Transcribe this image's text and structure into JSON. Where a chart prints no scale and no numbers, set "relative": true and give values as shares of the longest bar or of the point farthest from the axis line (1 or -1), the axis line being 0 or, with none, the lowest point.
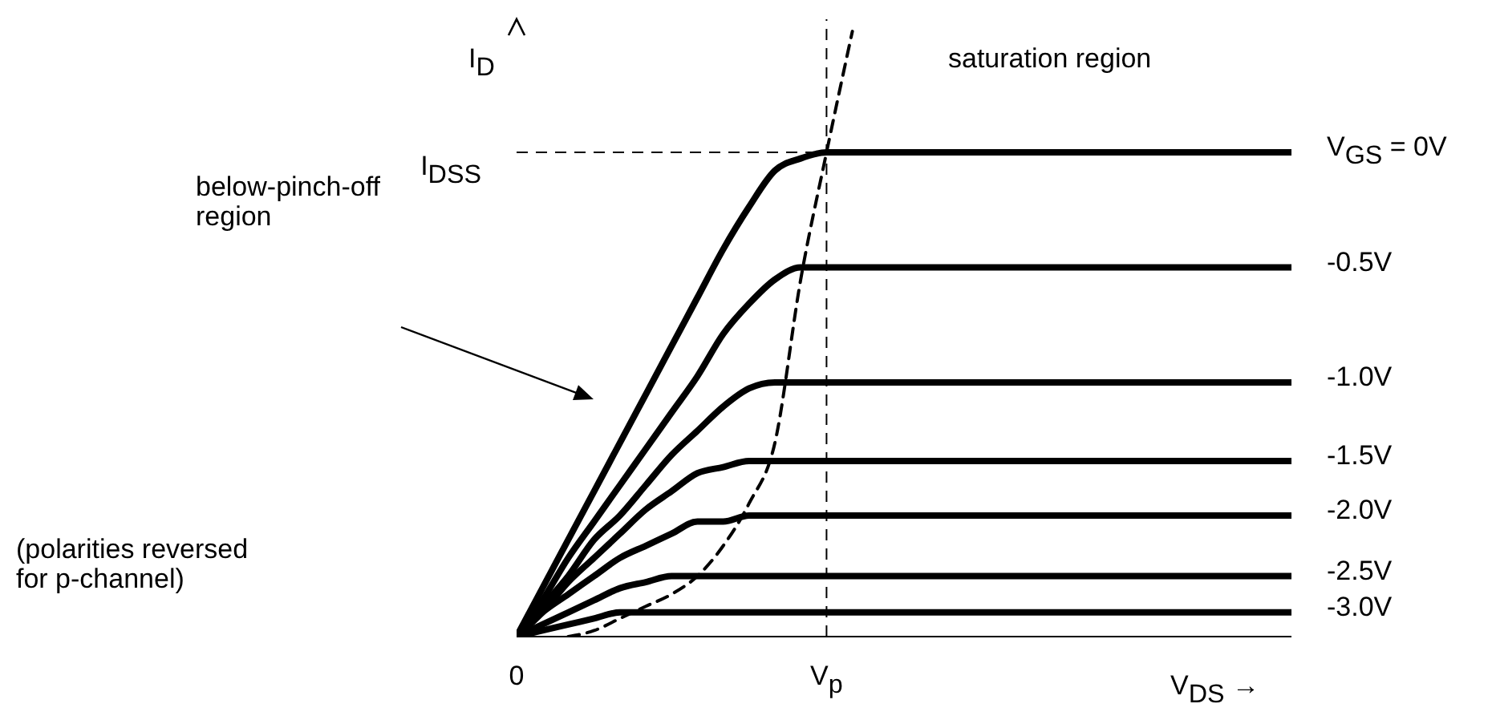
{
  "chart_data": {
    "type": "line",
    "relative": true,
    "xlabel": "V$_{DS}$ →",
    "ylabel": "I$_{D}$",
    "categories": [
      "0",
      null,
      null,
      null,
      null,
      null,
      null,
      null,
      null,
      null,
      null,
      null,
      "V$_{p}$",
      null,
      null,
      null,
      null,
      null,
      null,
      null,
      null,
      null,
      null,
      null,
      null,
      null,
      null,
      null,
      null,
      null,
      null
    ],
    "series": [
      {
        "name": "V$_{GS}$ = 0V",
        "color": "#000000",
        "line_style": "solid",
        "values": [
          0,
          0.08,
          0.16,
          0.24,
          0.32,
          0.4,
          0.48,
          0.56,
          0.64,
          0.71,
          0.77,
          0.79,
          0.8,
          0.8,
          0.8,
          0.8,
          0.8,
          0.8,
          0.8,
          0.8,
          0.8,
          0.8,
          0.8,
          0.8,
          0.8,
          0.8,
          0.8,
          0.8,
          0.8,
          0.8,
          0.8
        ]
      },
      {
        "name": "-0.5V",
        "color": "#000000",
        "line_style": "solid",
        "values": [
          0,
          0.06,
          0.13,
          0.19,
          0.25,
          0.31,
          0.37,
          0.43,
          0.5,
          0.55,
          0.59,
          0.61,
          0.61,
          0.61,
          0.61,
          0.61,
          0.61,
          0.61,
          0.61,
          0.61,
          0.61,
          0.61,
          0.61,
          0.61,
          0.61,
          0.61,
          0.61,
          0.61,
          0.61,
          0.61,
          0.61
        ]
      },
      {
        "name": "-1.0V",
        "color": "#000000",
        "line_style": "solid",
        "values": [
          0,
          0.05,
          0.1,
          0.16,
          0.2,
          0.25,
          0.3,
          0.34,
          0.38,
          0.41,
          0.42,
          0.42,
          0.42,
          0.42,
          0.42,
          0.42,
          0.42,
          0.42,
          0.42,
          0.42,
          0.42,
          0.42,
          0.42,
          0.42,
          0.42,
          0.42,
          0.42,
          0.42,
          0.42,
          0.42,
          0.42
        ]
      },
      {
        "name": "-1.5V",
        "color": "#000000",
        "line_style": "solid",
        "values": [
          0,
          0.04,
          0.09,
          0.13,
          0.17,
          0.21,
          0.24,
          0.27,
          0.28,
          0.29,
          0.29,
          0.29,
          0.29,
          0.29,
          0.29,
          0.29,
          0.29,
          0.29,
          0.29,
          0.29,
          0.29,
          0.29,
          0.29,
          0.29,
          0.29,
          0.29,
          0.29,
          0.29,
          0.29,
          0.29,
          0.29
        ]
      },
      {
        "name": "-2.0V",
        "color": "#000000",
        "line_style": "solid",
        "values": [
          0,
          0.04,
          0.07,
          0.1,
          0.13,
          0.15,
          0.17,
          0.19,
          0.19,
          0.2,
          0.2,
          0.2,
          0.2,
          0.2,
          0.2,
          0.2,
          0.2,
          0.2,
          0.2,
          0.2,
          0.2,
          0.2,
          0.2,
          0.2,
          0.2,
          0.2,
          0.2,
          0.2,
          0.2,
          0.2,
          0.2
        ]
      },
      {
        "name": "-2.5V",
        "color": "#000000",
        "line_style": "solid",
        "values": [
          0,
          0.02,
          0.04,
          0.06,
          0.08,
          0.09,
          0.1,
          0.1,
          0.1,
          0.1,
          0.1,
          0.1,
          0.1,
          0.1,
          0.1,
          0.1,
          0.1,
          0.1,
          0.1,
          0.1,
          0.1,
          0.1,
          0.1,
          0.1,
          0.1,
          0.1,
          0.1,
          0.1,
          0.1,
          0.1,
          0.1
        ]
      },
      {
        "name": "-3.0V",
        "color": "#000000",
        "line_style": "solid",
        "values": [
          0,
          0.01,
          0.02,
          0.03,
          0.04,
          0.04,
          0.04,
          0.04,
          0.04,
          0.04,
          0.04,
          0.04,
          0.04,
          0.04,
          0.04,
          0.04,
          0.04,
          0.04,
          0.04,
          0.04,
          0.04,
          0.04,
          0.04,
          0.04,
          0.04,
          0.04,
          0.04,
          0.04,
          0.04,
          0.04,
          0.04
        ]
      },
      {
        "color": "#000000",
        "line_style": "dashed",
        "values": [
          null,
          null,
          0,
          0.01,
          0.03,
          0.05,
          0.07,
          0.1,
          0.15,
          0.22,
          0.32,
          0.59,
          0.8,
          1,
          null,
          null,
          null,
          null,
          null,
          null,
          null,
          null,
          null,
          null,
          null,
          null,
          null,
          null,
          null,
          null,
          null
        ]
      }
    ],
    "ref_lines": [
      {
        "axis": "y",
        "value": 0.8,
        "label": "I$_{DSS}$",
        "line_style": "dashed",
        "color": "#000000"
      },
      {
        "axis": "x",
        "value": "V$_{p}$",
        "line_style": "dashed",
        "color": "#000000"
      }
    ],
    "annotations": [
      "saturation region",
      "below-pinch-off\nregion",
      "(polarities reversed\nfor p-channel)"
    ],
    "marker": "none"
  }
}
